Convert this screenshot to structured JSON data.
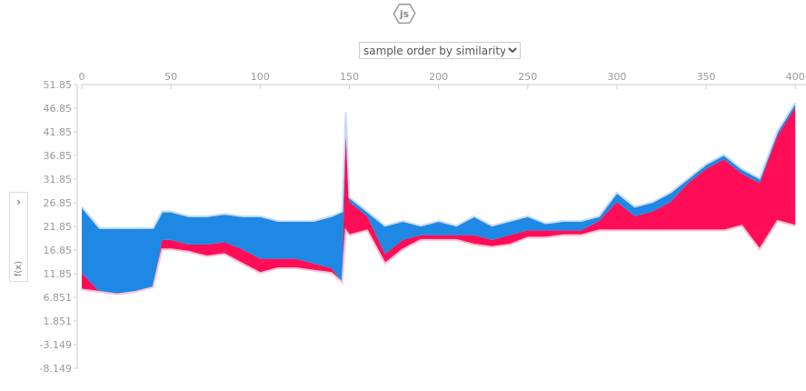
{
  "logo": "js",
  "controls": {
    "order_select": "sample order by similarity",
    "y_select": "f(x)"
  },
  "chart_data": {
    "type": "force",
    "x": [
      0,
      10,
      20,
      30,
      40,
      45,
      50,
      60,
      70,
      80,
      90,
      100,
      110,
      120,
      130,
      140,
      146,
      148,
      150,
      160,
      170,
      180,
      190,
      200,
      210,
      220,
      230,
      240,
      250,
      260,
      270,
      280,
      290,
      300,
      310,
      320,
      330,
      340,
      350,
      360,
      370,
      380,
      390,
      400
    ],
    "series": [
      {
        "color": "#ffc3d5",
        "values": [
          8.5,
          8,
          7.5,
          8,
          9,
          17,
          17,
          16.5,
          15.5,
          16,
          14,
          12,
          13,
          13,
          12.5,
          12,
          10,
          21,
          20,
          21,
          14,
          17,
          19,
          19,
          19,
          18,
          17.5,
          18,
          19.5,
          19.5,
          20,
          20,
          21,
          21,
          21,
          21,
          21,
          21,
          21,
          21,
          22,
          17,
          23,
          22
        ]
      },
      {
        "color": "#ff0d57",
        "values": [
          12,
          8,
          7.5,
          8,
          9,
          19,
          19,
          18,
          18,
          18.5,
          17,
          15,
          15,
          15,
          14,
          13,
          10,
          45,
          27,
          24,
          16,
          19,
          20,
          20,
          20,
          20,
          19,
          20,
          21,
          21,
          21,
          21,
          23,
          27,
          24,
          25,
          27,
          31,
          34,
          36,
          33,
          31,
          41,
          47
        ]
      },
      {
        "color": "#1e88e5",
        "values": [
          26,
          21.5,
          21.5,
          21.5,
          21.5,
          25,
          25,
          24,
          24,
          24.5,
          24,
          24,
          23,
          23,
          23,
          24,
          25,
          46,
          28,
          25,
          22,
          23,
          22,
          23,
          22,
          24,
          22,
          23,
          24,
          22.5,
          23,
          23,
          24,
          29,
          26,
          27,
          29,
          32,
          35,
          37,
          34,
          32,
          42,
          48
        ]
      }
    ],
    "xlim": [
      0,
      406
    ],
    "ylim": [
      -8.149,
      51.85
    ],
    "xticks": [
      0,
      50,
      100,
      150,
      200,
      250,
      300,
      350,
      400
    ],
    "yticks": [
      51.85,
      46.85,
      41.85,
      36.85,
      31.85,
      26.85,
      21.85,
      16.85,
      11.85,
      6.851,
      1.851,
      -3.149,
      -8.149
    ]
  }
}
